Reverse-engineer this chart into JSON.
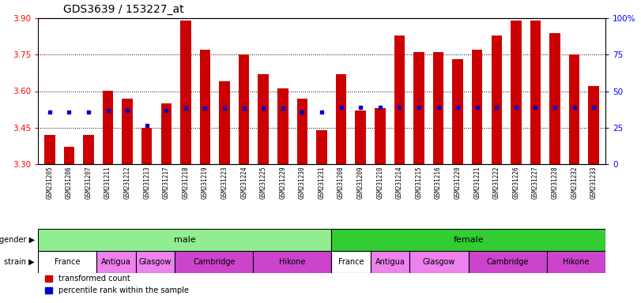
{
  "title": "GDS3639 / 153227_at",
  "samples": [
    "GSM231205",
    "GSM231206",
    "GSM231207",
    "GSM231211",
    "GSM231212",
    "GSM231213",
    "GSM231217",
    "GSM231218",
    "GSM231219",
    "GSM231223",
    "GSM231224",
    "GSM231225",
    "GSM231229",
    "GSM231230",
    "GSM231231",
    "GSM231208",
    "GSM231209",
    "GSM231210",
    "GSM231214",
    "GSM231215",
    "GSM231216",
    "GSM231220",
    "GSM231221",
    "GSM231222",
    "GSM231226",
    "GSM231227",
    "GSM231228",
    "GSM231232",
    "GSM231233"
  ],
  "bar_values": [
    3.42,
    3.37,
    3.42,
    3.6,
    3.57,
    3.45,
    3.55,
    3.89,
    3.77,
    3.64,
    3.75,
    3.67,
    3.61,
    3.57,
    3.44,
    3.67,
    3.52,
    3.53,
    3.83,
    3.76,
    3.76,
    3.73,
    3.77,
    3.83,
    3.89,
    3.89,
    3.84,
    3.75,
    3.62
  ],
  "percentile_values": [
    3.515,
    3.515,
    3.515,
    3.52,
    3.52,
    3.46,
    3.52,
    3.53,
    3.53,
    3.53,
    3.53,
    3.53,
    3.53,
    3.515,
    3.515,
    3.535,
    3.535,
    3.535,
    3.535,
    3.535,
    3.535,
    3.535,
    3.535,
    3.535,
    3.535,
    3.535,
    3.535,
    3.535,
    3.535
  ],
  "ymin": 3.3,
  "ymax": 3.9,
  "yticks": [
    3.3,
    3.45,
    3.6,
    3.75,
    3.9
  ],
  "gridlines": [
    3.45,
    3.6,
    3.75
  ],
  "right_ytick_vals": [
    0,
    25,
    50,
    75,
    100
  ],
  "right_ytick_labels": [
    "0",
    "25",
    "50",
    "75",
    "100%"
  ],
  "bar_color": "#cc0000",
  "percentile_color": "#0000cc",
  "male_color": "#90EE90",
  "female_color": "#32CD32",
  "strain_colors_male": [
    "#ffffff",
    "#EE82EE",
    "#EE82EE",
    "#CC44CC",
    "#CC44CC"
  ],
  "strain_colors_female": [
    "#ffffff",
    "#EE82EE",
    "#EE82EE",
    "#CC44CC",
    "#CC44CC"
  ],
  "strain_labels": [
    "France",
    "Antigua",
    "Glasgow",
    "Cambridge",
    "Hikone"
  ],
  "male_count": 15,
  "female_count": 14,
  "strain_male_counts": [
    3,
    2,
    2,
    4,
    4
  ],
  "strain_female_counts": [
    2,
    2,
    3,
    4,
    3
  ],
  "xtick_bg_color": "#d3d3d3",
  "plot_bg_color": "#ffffff"
}
